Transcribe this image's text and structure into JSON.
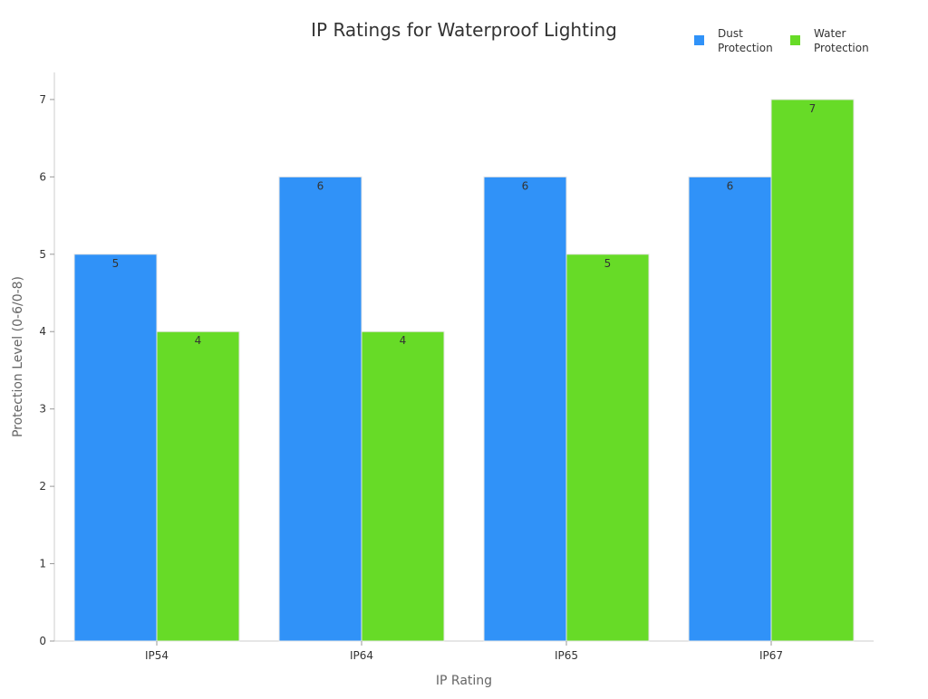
{
  "chart_data": {
    "type": "bar",
    "title": "IP Ratings for Waterproof Lighting",
    "xlabel": "IP Rating",
    "ylabel": "Protection Level (0-6/0-8)",
    "categories": [
      "IP54",
      "IP64",
      "IP65",
      "IP67"
    ],
    "series": [
      {
        "name": "Dust Protection",
        "legend_lines": [
          "Dust",
          "Protection"
        ],
        "color": "#3092f8",
        "values": [
          5,
          6,
          6,
          6
        ]
      },
      {
        "name": "Water Protection",
        "legend_lines": [
          "Water",
          "Protection"
        ],
        "color": "#67db27",
        "values": [
          4,
          4,
          5,
          7
        ]
      }
    ],
    "ylim": [
      0,
      7.35
    ],
    "yticks": [
      0,
      1,
      2,
      3,
      4,
      5,
      6,
      7
    ],
    "grid": false,
    "legend_position": "top-right",
    "data_labels": true
  }
}
